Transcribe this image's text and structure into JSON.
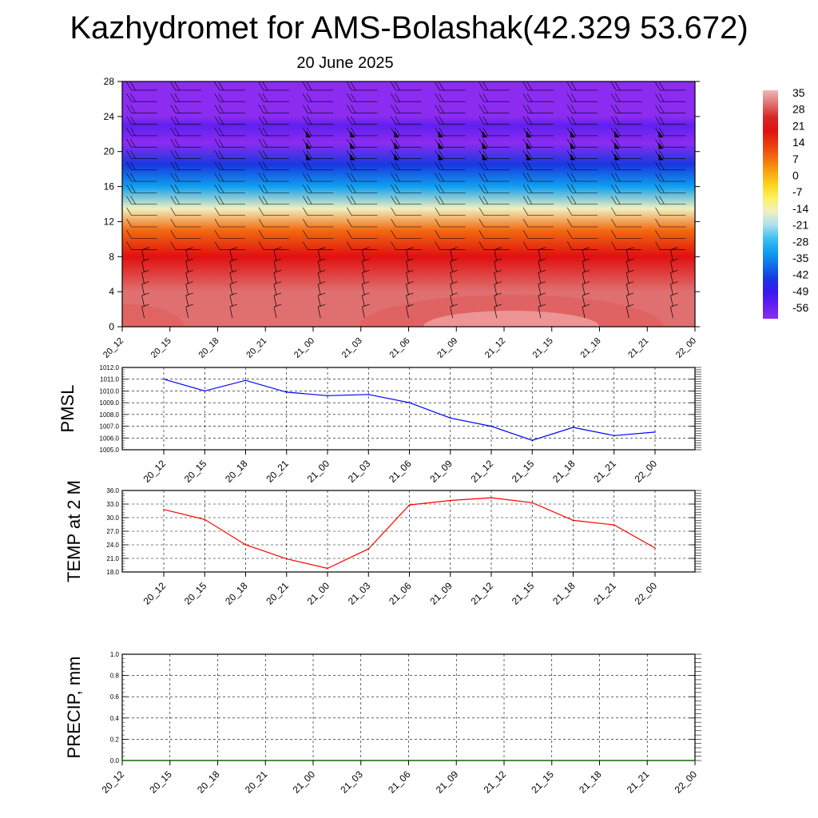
{
  "title": "Kazhydromet for AMS-Bolashak(42.329 53.672)",
  "subtitle": "20 June 2025",
  "chart_data": [
    {
      "type": "heatmap",
      "name": "cross-section",
      "x_labels": [
        "20_12",
        "20_15",
        "20_18",
        "20_21",
        "21_00",
        "21_03",
        "21_06",
        "21_09",
        "21_12",
        "21_15",
        "21_18",
        "21_21",
        "22_00"
      ],
      "y_ticks": [
        0,
        4,
        8,
        12,
        16,
        20,
        24,
        28
      ],
      "ylim": [
        0,
        28
      ],
      "grid": false,
      "colorbar": {
        "labels": [
          "35",
          "28",
          "21",
          "14",
          "7",
          "0",
          "-7",
          "-14",
          "-21",
          "-28",
          "-35",
          "-42",
          "-49",
          "-56"
        ],
        "colors": [
          "#f0b8b8",
          "#e07070",
          "#d62828",
          "#e01010",
          "#e83a10",
          "#f26a10",
          "#f8a010",
          "#fcd21c",
          "#fff060",
          "#f0f0c0",
          "#b0e0f0",
          "#40c0f0",
          "#10a0f0",
          "#1070e8",
          "#1838e0",
          "#3818f0",
          "#6020f0",
          "#8c2cf0"
        ],
        "position": "right"
      },
      "temperature_by_level": [
        {
          "height": 0,
          "value": 32
        },
        {
          "height": 4,
          "value": 28
        },
        {
          "height": 8,
          "value": 20
        },
        {
          "height": 11,
          "value": 7
        },
        {
          "height": 13.5,
          "value": -12
        },
        {
          "height": 16,
          "value": -28
        },
        {
          "height": 18.5,
          "value": -42
        },
        {
          "height": 21,
          "value": -56
        },
        {
          "height": 23,
          "value": -50
        },
        {
          "height": 24,
          "value": -60
        },
        {
          "height": 28,
          "value": -60
        }
      ],
      "wind_barbs": "present"
    },
    {
      "type": "line",
      "name": "PMSL",
      "ylabel": "PMSL",
      "x": [
        "20_12",
        "20_15",
        "20_18",
        "20_21",
        "21_00",
        "21_03",
        "21_06",
        "21_09",
        "21_12",
        "21_15",
        "21_18",
        "21_21",
        "22_00"
      ],
      "series": [
        {
          "values": [
            1011.0,
            1010.0,
            1010.9,
            1009.9,
            1009.6,
            1009.7,
            1009.0,
            1007.7,
            1007.0,
            1005.8,
            1006.9,
            1006.2,
            1006.5
          ],
          "color": "#0000ff"
        }
      ],
      "ylim": [
        1005.0,
        1012.0
      ],
      "y_ticks": [
        "1005.0",
        "1006.0",
        "1007.0",
        "1008.0",
        "1009.0",
        "1010.0",
        "1011.0",
        "1012.0"
      ],
      "grid": true
    },
    {
      "type": "line",
      "name": "TEMP",
      "ylabel": "TEMP at 2 M",
      "x": [
        "20_12",
        "20_15",
        "20_18",
        "20_21",
        "21_00",
        "21_03",
        "21_06",
        "21_09",
        "21_12",
        "21_15",
        "21_18",
        "21_21",
        "22_00"
      ],
      "series": [
        {
          "values": [
            31.8,
            29.6,
            24.0,
            20.9,
            18.8,
            23.1,
            32.8,
            33.8,
            34.4,
            33.3,
            29.4,
            28.4,
            23.3
          ],
          "color": "#ff0000"
        }
      ],
      "ylim": [
        18.0,
        36.0
      ],
      "y_ticks": [
        "18.0",
        "21.0",
        "24.0",
        "27.0",
        "30.0",
        "33.0",
        "36.0"
      ],
      "grid": true
    },
    {
      "type": "line",
      "name": "PRECIP",
      "ylabel": "PRECIP, mm",
      "x": [
        "20_12",
        "20_15",
        "20_18",
        "20_21",
        "21_00",
        "21_03",
        "21_06",
        "21_09",
        "21_12",
        "21_15",
        "21_18",
        "21_21",
        "22_00"
      ],
      "series": [
        {
          "values": [
            0,
            0,
            0,
            0,
            0,
            0,
            0,
            0,
            0,
            0,
            0,
            0,
            0
          ],
          "color": "#006400"
        }
      ],
      "ylim": [
        0.0,
        1.0
      ],
      "y_ticks": [
        "0.0",
        "0.2",
        "0.4",
        "0.6",
        "0.8",
        "1.0"
      ],
      "grid": true
    }
  ]
}
